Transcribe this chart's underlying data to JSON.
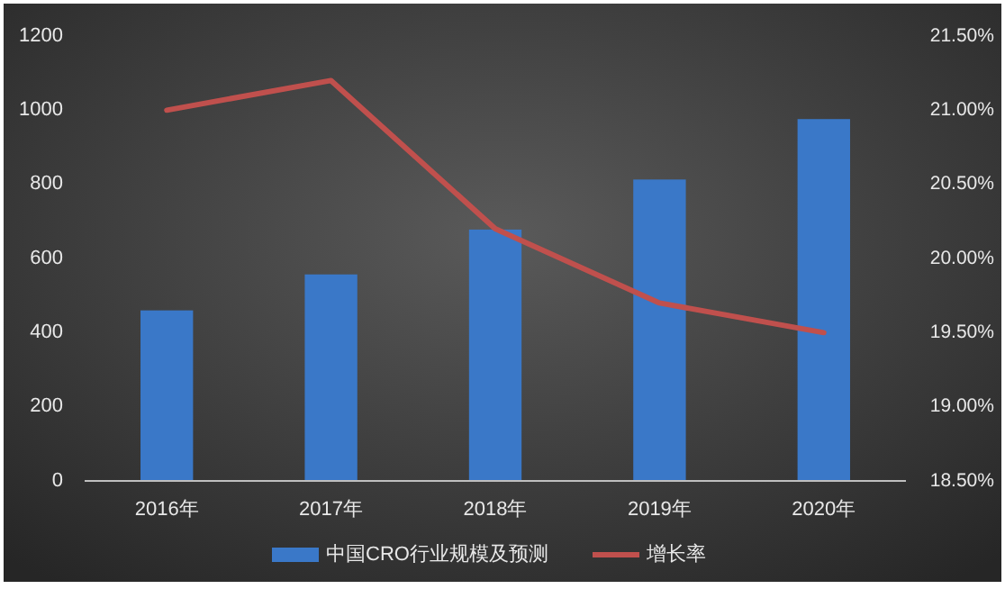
{
  "chart_data": {
    "type": "bar",
    "categories": [
      "2016年",
      "2017年",
      "2018年",
      "2019年",
      "2020年"
    ],
    "series": [
      {
        "name": "中国CRO行业规模及预测",
        "color": "#3a78c8",
        "values": [
          460,
          557,
          678,
          813,
          976
        ]
      },
      {
        "name": "增长率",
        "type": "line",
        "axis": "y2",
        "color": "#c0504d",
        "values": [
          21.0,
          21.2,
          20.2,
          19.7,
          19.5
        ]
      }
    ],
    "ylim": [
      0,
      1200
    ],
    "yticks": [
      0,
      200,
      400,
      600,
      800,
      1000,
      1200
    ],
    "y2lim": [
      18.5,
      21.5
    ],
    "y2ticks": [
      {
        "value": 18.5,
        "label": "18.50%"
      },
      {
        "value": 19.0,
        "label": "19.00%"
      },
      {
        "value": 19.5,
        "label": "19.50%"
      },
      {
        "value": 20.0,
        "label": "20.00%"
      },
      {
        "value": 20.5,
        "label": "20.50%"
      },
      {
        "value": 21.0,
        "label": "21.00%"
      },
      {
        "value": 21.5,
        "label": "21.50%"
      }
    ],
    "legend": "bottom",
    "grid": false
  }
}
